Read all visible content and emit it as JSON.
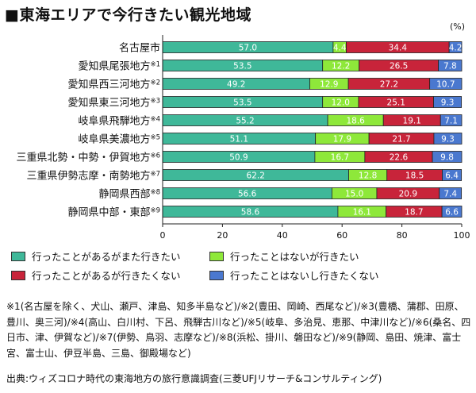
{
  "title": "■東海エリアで今行きたい観光地域",
  "chart_data": {
    "type": "bar",
    "stacked": true,
    "orientation": "horizontal",
    "unit": "(%)",
    "categories": [
      "名古屋市",
      "愛知県尾張地方※1",
      "愛知県西三河地方※2",
      "愛知県東三河地方※3",
      "岐阜県飛騨地方※4",
      "岐阜県美濃地方※5",
      "三重県北勢・中勢・伊賀地方※6",
      "三重県伊勢志摩・南勢地方※7",
      "静岡県西部※8",
      "静岡県中部・東部※9"
    ],
    "series": [
      {
        "name": "行ったことがあるがまた行きたい",
        "color": "#3fb899",
        "values": [
          57.0,
          53.5,
          49.2,
          53.5,
          55.2,
          51.1,
          50.9,
          62.2,
          56.6,
          58.6
        ]
      },
      {
        "name": "行ったことはないが行きたい",
        "color": "#8ee83a",
        "values": [
          4.4,
          12.2,
          12.9,
          12.0,
          18.6,
          17.9,
          16.7,
          12.8,
          15.0,
          16.1
        ]
      },
      {
        "name": "行ったことがあるが行きたくない",
        "color": "#c8243a",
        "values": [
          34.4,
          26.5,
          27.2,
          25.1,
          19.1,
          21.7,
          22.6,
          18.5,
          20.9,
          18.7
        ]
      },
      {
        "name": "行ったことはないし行きたくない",
        "color": "#4a78cf",
        "values": [
          4.2,
          7.8,
          10.7,
          9.3,
          7.1,
          9.3,
          9.8,
          6.4,
          7.4,
          6.6
        ]
      }
    ],
    "xticks": [
      "0",
      "20",
      "40",
      "60",
      "80",
      "100"
    ],
    "xlim": [
      0,
      100
    ],
    "grid": false,
    "legend_position": "bottom"
  },
  "notes": "※1(名古屋を除く、犬山、瀬戸、津島、知多半島など)/※2(豊田、岡崎、西尾など)/※3(豊橋、蒲郡、田原、豊川、奥三河)/※4(高山、白川村、下呂、飛騨古川など)/※5(岐阜、多治見、恵那、中津川など)/※6(桑名、四日市、津、伊賀など)/※7(伊勢、鳥羽、志摩など)/※8(浜松、掛川、磐田など)/※9(静岡、島田、焼津、富士宮、富士山、伊豆半島、三島、御殿場など)",
  "source": "出典:ウィズコロナ時代の東海地方の旅行意識調査(三菱UFJリサーチ&コンサルティング)"
}
